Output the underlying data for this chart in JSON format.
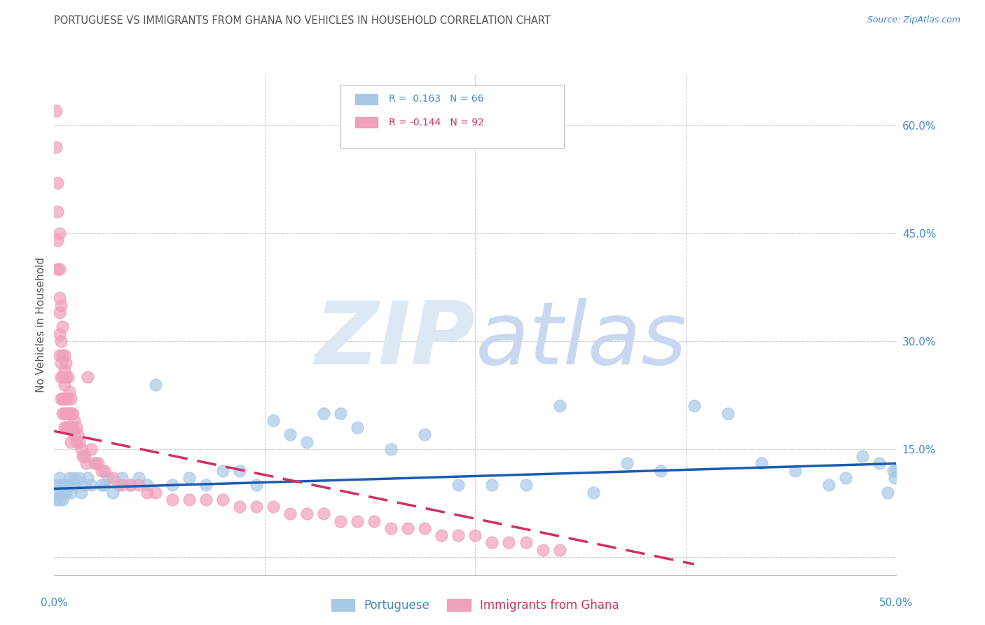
{
  "title": "PORTUGUESE VS IMMIGRANTS FROM GHANA NO VEHICLES IN HOUSEHOLD CORRELATION CHART",
  "source": "Source: ZipAtlas.com",
  "ylabel": "No Vehicles in Household",
  "xlim": [
    0.0,
    0.5
  ],
  "ylim": [
    -0.025,
    0.67
  ],
  "blue_R": 0.163,
  "blue_N": 66,
  "pink_R": -0.144,
  "pink_N": 92,
  "blue_color": "#a8c8e8",
  "pink_color": "#f0a0b8",
  "blue_line_color": "#1a5cb0",
  "pink_line_color": "#d03060",
  "grid_color": "#cccccc",
  "title_color": "#555555",
  "right_axis_color": "#4488cc",
  "watermark_zip_color": "#dde8f5",
  "watermark_atlas_color": "#c8d8f0",
  "legend_label_blue": "Portuguese",
  "legend_label_pink": "Immigrants from Ghana",
  "blue_points_x": [
    0.001,
    0.002,
    0.002,
    0.003,
    0.003,
    0.004,
    0.004,
    0.005,
    0.005,
    0.006,
    0.007,
    0.008,
    0.009,
    0.01,
    0.011,
    0.012,
    0.013,
    0.015,
    0.016,
    0.018,
    0.02,
    0.022,
    0.025,
    0.028,
    0.03,
    0.032,
    0.035,
    0.038,
    0.04,
    0.045,
    0.05,
    0.055,
    0.06,
    0.07,
    0.08,
    0.09,
    0.1,
    0.11,
    0.12,
    0.13,
    0.14,
    0.15,
    0.16,
    0.17,
    0.18,
    0.2,
    0.22,
    0.24,
    0.26,
    0.28,
    0.3,
    0.32,
    0.34,
    0.36,
    0.38,
    0.4,
    0.42,
    0.44,
    0.46,
    0.47,
    0.48,
    0.49,
    0.495,
    0.498,
    0.499,
    0.5
  ],
  "blue_points_y": [
    0.08,
    0.09,
    0.1,
    0.08,
    0.11,
    0.09,
    0.1,
    0.08,
    0.09,
    0.1,
    0.09,
    0.1,
    0.11,
    0.09,
    0.1,
    0.11,
    0.1,
    0.11,
    0.09,
    0.1,
    0.11,
    0.1,
    0.13,
    0.1,
    0.1,
    0.11,
    0.09,
    0.1,
    0.11,
    0.1,
    0.11,
    0.1,
    0.24,
    0.1,
    0.11,
    0.1,
    0.12,
    0.12,
    0.1,
    0.19,
    0.17,
    0.16,
    0.2,
    0.2,
    0.18,
    0.15,
    0.17,
    0.1,
    0.1,
    0.1,
    0.21,
    0.09,
    0.13,
    0.12,
    0.21,
    0.2,
    0.13,
    0.12,
    0.1,
    0.11,
    0.14,
    0.13,
    0.09,
    0.12,
    0.11,
    0.12
  ],
  "pink_points_x": [
    0.001,
    0.001,
    0.002,
    0.002,
    0.002,
    0.002,
    0.003,
    0.003,
    0.003,
    0.003,
    0.003,
    0.003,
    0.004,
    0.004,
    0.004,
    0.004,
    0.004,
    0.005,
    0.005,
    0.005,
    0.005,
    0.005,
    0.006,
    0.006,
    0.006,
    0.006,
    0.006,
    0.006,
    0.007,
    0.007,
    0.007,
    0.007,
    0.007,
    0.008,
    0.008,
    0.008,
    0.008,
    0.009,
    0.009,
    0.009,
    0.01,
    0.01,
    0.01,
    0.01,
    0.011,
    0.011,
    0.012,
    0.012,
    0.013,
    0.013,
    0.014,
    0.015,
    0.016,
    0.017,
    0.018,
    0.019,
    0.02,
    0.022,
    0.024,
    0.026,
    0.028,
    0.03,
    0.035,
    0.04,
    0.045,
    0.05,
    0.055,
    0.06,
    0.07,
    0.08,
    0.09,
    0.1,
    0.11,
    0.12,
    0.13,
    0.14,
    0.15,
    0.16,
    0.17,
    0.18,
    0.19,
    0.2,
    0.21,
    0.22,
    0.23,
    0.24,
    0.25,
    0.26,
    0.27,
    0.28,
    0.29,
    0.3
  ],
  "pink_points_y": [
    0.62,
    0.57,
    0.52,
    0.48,
    0.44,
    0.4,
    0.45,
    0.4,
    0.36,
    0.34,
    0.31,
    0.28,
    0.35,
    0.3,
    0.27,
    0.25,
    0.22,
    0.32,
    0.28,
    0.25,
    0.22,
    0.2,
    0.28,
    0.26,
    0.24,
    0.22,
    0.2,
    0.18,
    0.27,
    0.25,
    0.22,
    0.2,
    0.18,
    0.25,
    0.22,
    0.2,
    0.18,
    0.23,
    0.2,
    0.18,
    0.22,
    0.2,
    0.18,
    0.16,
    0.2,
    0.18,
    0.19,
    0.17,
    0.18,
    0.16,
    0.17,
    0.16,
    0.15,
    0.14,
    0.14,
    0.13,
    0.25,
    0.15,
    0.13,
    0.13,
    0.12,
    0.12,
    0.11,
    0.1,
    0.1,
    0.1,
    0.09,
    0.09,
    0.08,
    0.08,
    0.08,
    0.08,
    0.07,
    0.07,
    0.07,
    0.06,
    0.06,
    0.06,
    0.05,
    0.05,
    0.05,
    0.04,
    0.04,
    0.04,
    0.03,
    0.03,
    0.03,
    0.02,
    0.02,
    0.02,
    0.01,
    0.01
  ],
  "blue_trend_x0": 0.0,
  "blue_trend_x1": 0.5,
  "blue_trend_y0": 0.095,
  "blue_trend_y1": 0.13,
  "pink_trend_x0": 0.0,
  "pink_trend_x1": 0.38,
  "pink_trend_y0": 0.175,
  "pink_trend_y1": -0.01
}
